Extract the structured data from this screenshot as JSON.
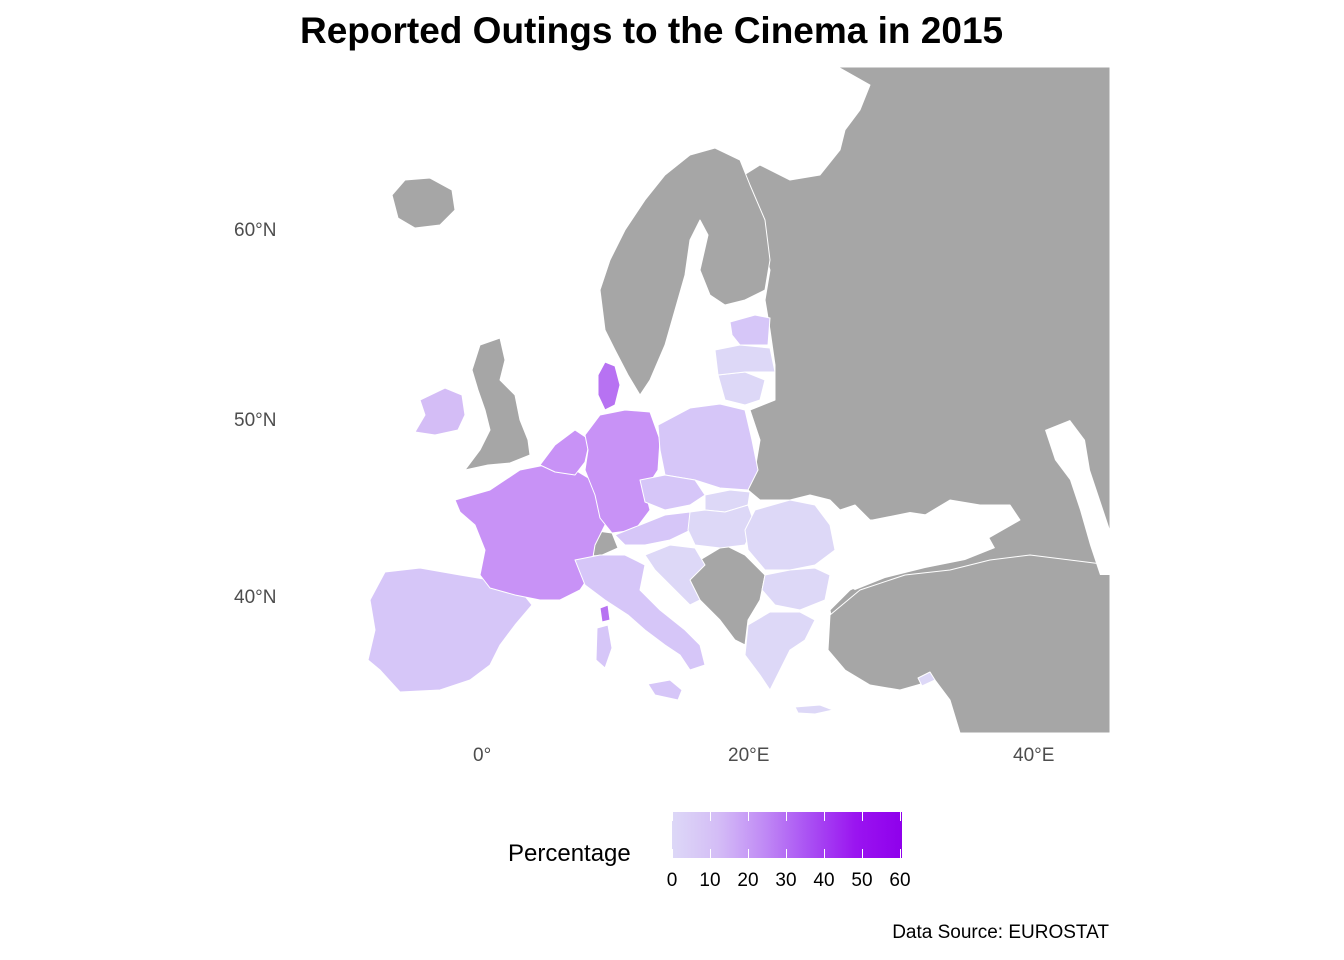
{
  "title": "Reported Outings to the Cinema in 2015",
  "axes": {
    "lat_labels": [
      "60°N",
      "50°N",
      "40°N"
    ],
    "lon_labels": [
      "0°",
      "20°E",
      "40°E"
    ]
  },
  "legend": {
    "title": "Percentage",
    "ticks": [
      "0",
      "10",
      "20",
      "30",
      "40",
      "50",
      "60"
    ],
    "range": [
      0,
      60
    ],
    "low_color": "#ddd8f7",
    "high_color": "#8f00ec"
  },
  "colors": {
    "no_data": "#a6a6a6",
    "border": "#ffffff",
    "very_low": "#ddd8f7",
    "low": "#d6c6f8",
    "mid": "#c892f6",
    "high": "#b772f2"
  },
  "source": "Data Source: EUROSTAT"
}
